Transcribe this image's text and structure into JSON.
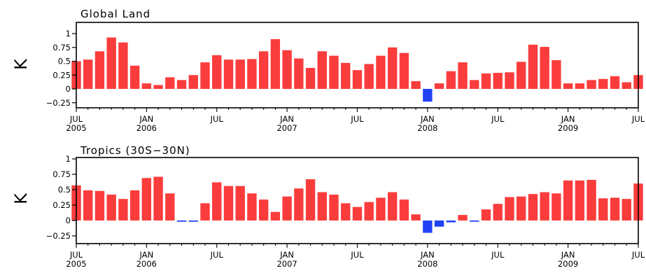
{
  "chart_data": [
    {
      "type": "bar",
      "title": "Global Land",
      "ylabel": "K",
      "xlabel": "",
      "ylim": [
        -0.375,
        1.125
      ],
      "yticks": [
        -0.25,
        0,
        0.25,
        0.5,
        0.75,
        1
      ],
      "ytick_labels": [
        "−0.25",
        "0",
        "0.25",
        "0.5",
        "0.75",
        "1"
      ],
      "grid": false,
      "colors": {
        "positive": "#fb3c3c",
        "negative": "#2242f5"
      },
      "x_start": "2005-07",
      "x_end": "2009-07",
      "xticks": [
        {
          "month": "JUL",
          "year": "2005"
        },
        {
          "month": "JAN",
          "year": "2006"
        },
        {
          "month": "JUL",
          "year": ""
        },
        {
          "month": "JAN",
          "year": "2007"
        },
        {
          "month": "JUL",
          "year": ""
        },
        {
          "month": "JAN",
          "year": "2008"
        },
        {
          "month": "JUL",
          "year": ""
        },
        {
          "month": "JAN",
          "year": "2009"
        },
        {
          "month": "JUL",
          "year": ""
        }
      ],
      "values": [
        0.5,
        0.53,
        0.68,
        0.93,
        0.84,
        0.42,
        0.1,
        0.07,
        0.21,
        0.16,
        0.25,
        0.48,
        0.61,
        0.53,
        0.53,
        0.54,
        0.68,
        0.9,
        0.7,
        0.55,
        0.38,
        0.68,
        0.6,
        0.47,
        0.34,
        0.45,
        0.6,
        0.75,
        0.65,
        0.14,
        -0.23,
        0.1,
        0.32,
        0.48,
        0.16,
        0.28,
        0.29,
        0.3,
        0.49,
        0.8,
        0.76,
        0.52,
        0.1,
        0.1,
        0.16,
        0.18,
        0.23,
        0.12,
        0.25
      ]
    },
    {
      "type": "bar",
      "title": "Tropics (30S−30N)",
      "ylabel": "K",
      "xlabel": "",
      "ylim": [
        -0.375,
        1.0
      ],
      "yticks": [
        -0.25,
        0,
        0.25,
        0.5,
        0.75,
        1
      ],
      "ytick_labels": [
        "−0.25",
        "0",
        "0.25",
        "0.5",
        "0.75",
        "1"
      ],
      "grid": false,
      "colors": {
        "positive": "#fb3c3c",
        "negative": "#2242f5"
      },
      "x_start": "2005-07",
      "x_end": "2009-07",
      "xticks": [
        {
          "month": "JUL",
          "year": "2005"
        },
        {
          "month": "JAN",
          "year": "2006"
        },
        {
          "month": "JUL",
          "year": ""
        },
        {
          "month": "JAN",
          "year": "2007"
        },
        {
          "month": "JUL",
          "year": ""
        },
        {
          "month": "JAN",
          "year": "2008"
        },
        {
          "month": "JUL",
          "year": ""
        },
        {
          "month": "JAN",
          "year": "2009"
        },
        {
          "month": "JUL",
          "year": ""
        }
      ],
      "values": [
        0.57,
        0.49,
        0.48,
        0.42,
        0.35,
        0.49,
        0.69,
        0.71,
        0.44,
        -0.02,
        -0.02,
        0.28,
        0.62,
        0.56,
        0.56,
        0.44,
        0.34,
        0.14,
        0.39,
        0.52,
        0.67,
        0.46,
        0.42,
        0.28,
        0.22,
        0.3,
        0.37,
        0.46,
        0.34,
        0.1,
        -0.2,
        -0.1,
        -0.03,
        0.09,
        -0.02,
        0.18,
        0.27,
        0.38,
        0.39,
        0.43,
        0.46,
        0.44,
        0.65,
        0.65,
        0.66,
        0.36,
        0.37,
        0.35,
        0.6
      ]
    }
  ]
}
